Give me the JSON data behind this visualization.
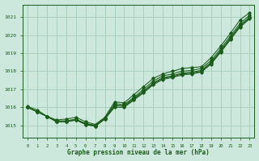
{
  "xlabel": "Graphe pression niveau de la mer (hPa)",
  "background_color": "#cce8dc",
  "grid_color": "#aacfbf",
  "line_color": "#1a5c1a",
  "xlim": [
    -0.5,
    23.5
  ],
  "ylim": [
    1014.3,
    1021.7
  ],
  "yticks": [
    1015,
    1016,
    1017,
    1018,
    1019,
    1020,
    1021
  ],
  "xticks": [
    0,
    1,
    2,
    3,
    4,
    5,
    6,
    7,
    8,
    9,
    10,
    11,
    12,
    13,
    14,
    15,
    16,
    17,
    18,
    19,
    20,
    21,
    22,
    23
  ],
  "series": [
    [
      1016.0,
      1015.75,
      1015.5,
      1015.25,
      1015.25,
      1015.35,
      1015.1,
      1015.0,
      1015.4,
      1016.2,
      1016.15,
      1016.55,
      1017.0,
      1017.45,
      1017.75,
      1017.85,
      1018.0,
      1018.05,
      1018.15,
      1018.6,
      1019.25,
      1019.95,
      1020.65,
      1021.1
    ],
    [
      1016.0,
      1015.75,
      1015.5,
      1015.2,
      1015.2,
      1015.3,
      1015.1,
      1015.0,
      1015.4,
      1016.1,
      1016.1,
      1016.5,
      1016.9,
      1017.35,
      1017.65,
      1017.75,
      1017.9,
      1017.95,
      1018.05,
      1018.5,
      1019.15,
      1019.85,
      1020.55,
      1021.0
    ],
    [
      1016.0,
      1015.75,
      1015.5,
      1015.2,
      1015.2,
      1015.3,
      1015.05,
      1014.95,
      1015.35,
      1016.1,
      1016.05,
      1016.45,
      1016.85,
      1017.3,
      1017.6,
      1017.7,
      1017.85,
      1017.9,
      1018.0,
      1018.45,
      1019.1,
      1019.8,
      1020.5,
      1020.95
    ],
    [
      1016.0,
      1015.75,
      1015.5,
      1015.2,
      1015.2,
      1015.3,
      1015.05,
      1014.95,
      1015.35,
      1016.0,
      1016.0,
      1016.4,
      1016.8,
      1017.25,
      1017.55,
      1017.65,
      1017.8,
      1017.85,
      1017.95,
      1018.4,
      1019.05,
      1019.75,
      1020.45,
      1020.9
    ]
  ],
  "series_top": [
    1016.05,
    1015.85,
    1015.5,
    1015.3,
    1015.35,
    1015.45,
    1015.2,
    1015.05,
    1015.45,
    1016.3,
    1016.25,
    1016.7,
    1017.15,
    1017.6,
    1017.85,
    1018.0,
    1018.15,
    1018.2,
    1018.25,
    1018.75,
    1019.4,
    1020.1,
    1020.85,
    1021.25
  ]
}
